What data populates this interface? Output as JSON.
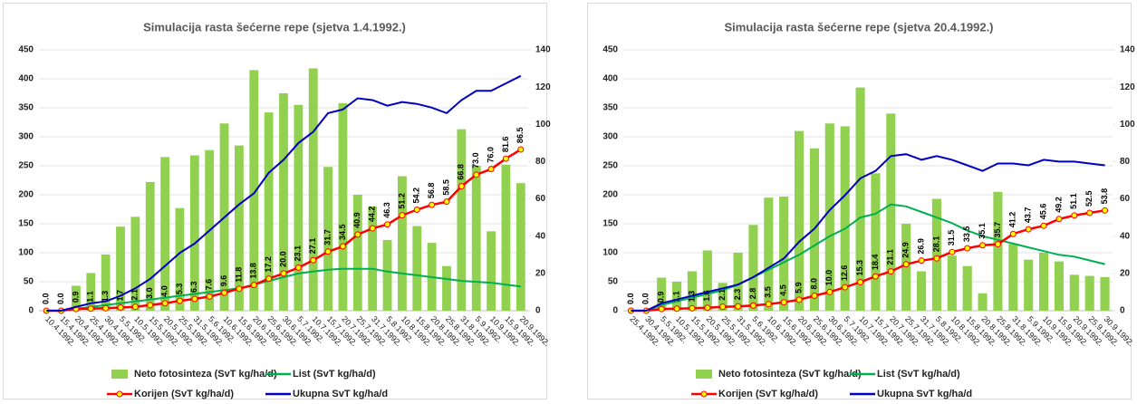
{
  "chart_data": [
    {
      "type": "bar",
      "title": "Simulacija rasta šećerne repe (sjetva 1.4.1992.)",
      "categories": [
        "10.4.1992.",
        "15.4.1992.",
        "20.4.1992.",
        "25.4.1992.",
        "30.4.1992.",
        "5.5.1992.",
        "10.5.1992.",
        "15.5.1992.",
        "20.5.1992.",
        "25.5.1992.",
        "31.5.1992.",
        "5.6.1992.",
        "10.6.1992.",
        "15.6.1992.",
        "20.6.1992.",
        "25.6.1992.",
        "30.6.1992.",
        "5.7.1992.",
        "10.7.1992.",
        "15.7.1992.",
        "20.7.1992.",
        "25.7.1992.",
        "31.7.1992.",
        "5.8.1992.",
        "10.8.1992.",
        "15.8.1992.",
        "20.8.1992.",
        "25.8.1992.",
        "31.8.1992.",
        "5.9.1992.",
        "10.9.1992.",
        "15.9.1992.",
        "20.9.1992."
      ],
      "ylim": [
        0,
        450
      ],
      "yticks": [
        0,
        50,
        100,
        150,
        200,
        250,
        300,
        350,
        400,
        450
      ],
      "y2lim": [
        0,
        140
      ],
      "y2ticks": [
        0,
        20,
        40,
        60,
        80,
        100,
        120,
        140
      ],
      "series": [
        {
          "name": "Neto fotosinteza (SvT kg/ha/d)",
          "type": "bar",
          "color": "#92d050",
          "values": [
            0,
            0,
            43,
            65,
            97,
            145,
            162,
            222,
            265,
            177,
            268,
            277,
            323,
            285,
            415,
            342,
            375,
            355,
            418,
            248,
            358,
            200,
            180,
            122,
            232,
            146,
            117,
            77,
            313,
            250,
            137,
            252,
            220
          ]
        },
        {
          "name": "List (SvT kg/ha/d)",
          "type": "line",
          "axis": "y2",
          "color": "#00b050",
          "values": [
            0,
            0,
            1,
            2,
            3,
            4,
            5,
            6,
            7,
            8,
            9,
            10,
            11,
            12,
            14,
            16,
            18,
            20,
            21,
            22,
            22.5,
            22.5,
            22.5,
            21,
            20,
            19,
            18,
            17,
            16,
            15.5,
            15,
            14,
            13
          ]
        },
        {
          "name": "Korijen (SvT kg/ha/d)",
          "type": "line",
          "axis": "y2",
          "color": "#ff0000",
          "marker_color": "#ffff00",
          "values": [
            0,
            0,
            0.9,
            1.1,
            1.3,
            1.7,
            2.1,
            3,
            4,
            5.3,
            6.3,
            7.6,
            9.6,
            11.8,
            13.8,
            17.2,
            20,
            23.1,
            27.1,
            31.7,
            34.5,
            40.9,
            44.2,
            46.3,
            51.2,
            54.2,
            56.8,
            58.5,
            66.8,
            73,
            76,
            81.6,
            86.5
          ],
          "value_labels": [
            "0.0",
            "0.0",
            "0.9",
            "1.1",
            "1.3",
            "1.7",
            "2.1",
            "3.0",
            "4.0",
            "5.3",
            "6.3",
            "7.6",
            "9.6",
            "11.8",
            "13.8",
            "17.2",
            "20.0",
            "23.1",
            "27.1",
            "31.7",
            "34.5",
            "40.9",
            "44.2",
            "46.3",
            "51.2",
            "54.2",
            "56.8",
            "58.5",
            "66.8",
            "73.0",
            "76.0",
            "81.6",
            "86.5"
          ]
        },
        {
          "name": "Ukupna SvT kg/ha/d",
          "type": "line",
          "axis": "y2",
          "color": "#0000c0",
          "values": [
            0,
            0,
            2,
            4,
            5,
            8,
            12,
            17,
            24,
            31,
            36,
            43,
            50,
            57,
            63,
            74,
            81,
            90,
            96,
            106,
            108,
            114,
            113,
            110,
            112,
            111,
            109,
            106,
            113,
            118,
            118,
            122,
            126
          ]
        }
      ]
    },
    {
      "type": "bar",
      "title": "Simulacija rasta šećerne repe (sjetva 20.4.1992.)",
      "categories": [
        "25.4.1992.",
        "30.4.1992.",
        "5.5.1992.",
        "10.5.1992.",
        "15.5.1992.",
        "20.5.1992.",
        "25.5.1992.",
        "31.5.1992.",
        "5.6.1992.",
        "10.6.1992.",
        "15.6.1992.",
        "20.6.1992.",
        "25.6.1992.",
        "30.6.1992.",
        "5.7.1992.",
        "10.7.1992.",
        "15.7.1992.",
        "20.7.1992.",
        "25.7.1992.",
        "31.7.1992.",
        "5.8.1992.",
        "10.8.1992.",
        "15.8.1992.",
        "20.8.1992.",
        "25.8.1992.",
        "31.8.1992.",
        "5.9.1992.",
        "10.9.1992.",
        "15.9.1992.",
        "20.9.1992.",
        "25.9.1992.",
        "30.9.1992."
      ],
      "ylim": [
        0,
        450
      ],
      "yticks": [
        0,
        50,
        100,
        150,
        200,
        250,
        300,
        350,
        400,
        450
      ],
      "y2lim": [
        0,
        140
      ],
      "y2ticks": [
        0,
        20,
        40,
        60,
        80,
        100,
        120,
        140
      ],
      "series": [
        {
          "name": "Neto fotosinteza (SvT kg/ha/d)",
          "type": "bar",
          "color": "#92d050",
          "values": [
            0,
            0,
            57,
            50,
            68,
            104,
            48,
            100,
            148,
            195,
            197,
            310,
            280,
            323,
            318,
            385,
            237,
            340,
            150,
            68,
            193,
            95,
            77,
            30,
            205,
            115,
            88,
            100,
            85,
            62,
            60,
            58
          ]
        },
        {
          "name": "List (SvT kg/ha/d)",
          "type": "line",
          "axis": "y2",
          "color": "#00b050",
          "values": [
            0,
            0,
            3,
            5,
            7,
            9,
            11,
            14,
            18,
            22,
            26,
            30,
            35,
            40,
            44,
            50,
            52,
            57,
            56,
            53,
            50,
            47,
            43,
            40,
            38,
            36,
            34,
            32,
            30,
            29,
            27,
            25
          ]
        },
        {
          "name": "Korijen (SvT kg/ha/d)",
          "type": "line",
          "axis": "y2",
          "color": "#ff0000",
          "marker_color": "#ffff00",
          "values": [
            0,
            0,
            0.9,
            1.1,
            1.3,
            1.6,
            2.1,
            2.3,
            2.8,
            3.5,
            4.5,
            5.9,
            8,
            10,
            12.6,
            15.3,
            18.4,
            21.1,
            24.9,
            26.9,
            28.1,
            31.5,
            33.5,
            35.1,
            35.7,
            41.2,
            43.7,
            45.6,
            49.2,
            51.1,
            52.5,
            53.8
          ],
          "value_labels": [
            "0.0",
            "0.0",
            "0.9",
            "1.1",
            "1.3",
            "1.6",
            "2.1",
            "2.3",
            "2.8",
            "3.5",
            "4.5",
            "5.9",
            "8.0",
            "10.0",
            "12.6",
            "15.3",
            "18.4",
            "21.1",
            "24.9",
            "26.9",
            "28.1",
            "31.5",
            "33.5",
            "35.1",
            "35.7",
            "41.2",
            "43.7",
            "45.6",
            "49.2",
            "51.1",
            "52.5",
            "53.8"
          ]
        },
        {
          "name": "Ukupna SvT kg/ha/d",
          "type": "line",
          "axis": "y2",
          "color": "#0000c0",
          "values": [
            0,
            0,
            4,
            6,
            8,
            10,
            12,
            14,
            18,
            23,
            28,
            37,
            44,
            54,
            62,
            71,
            75,
            83,
            84,
            81,
            83,
            81,
            78,
            75,
            79,
            79,
            78,
            81,
            80,
            80,
            79,
            78
          ]
        }
      ]
    }
  ]
}
